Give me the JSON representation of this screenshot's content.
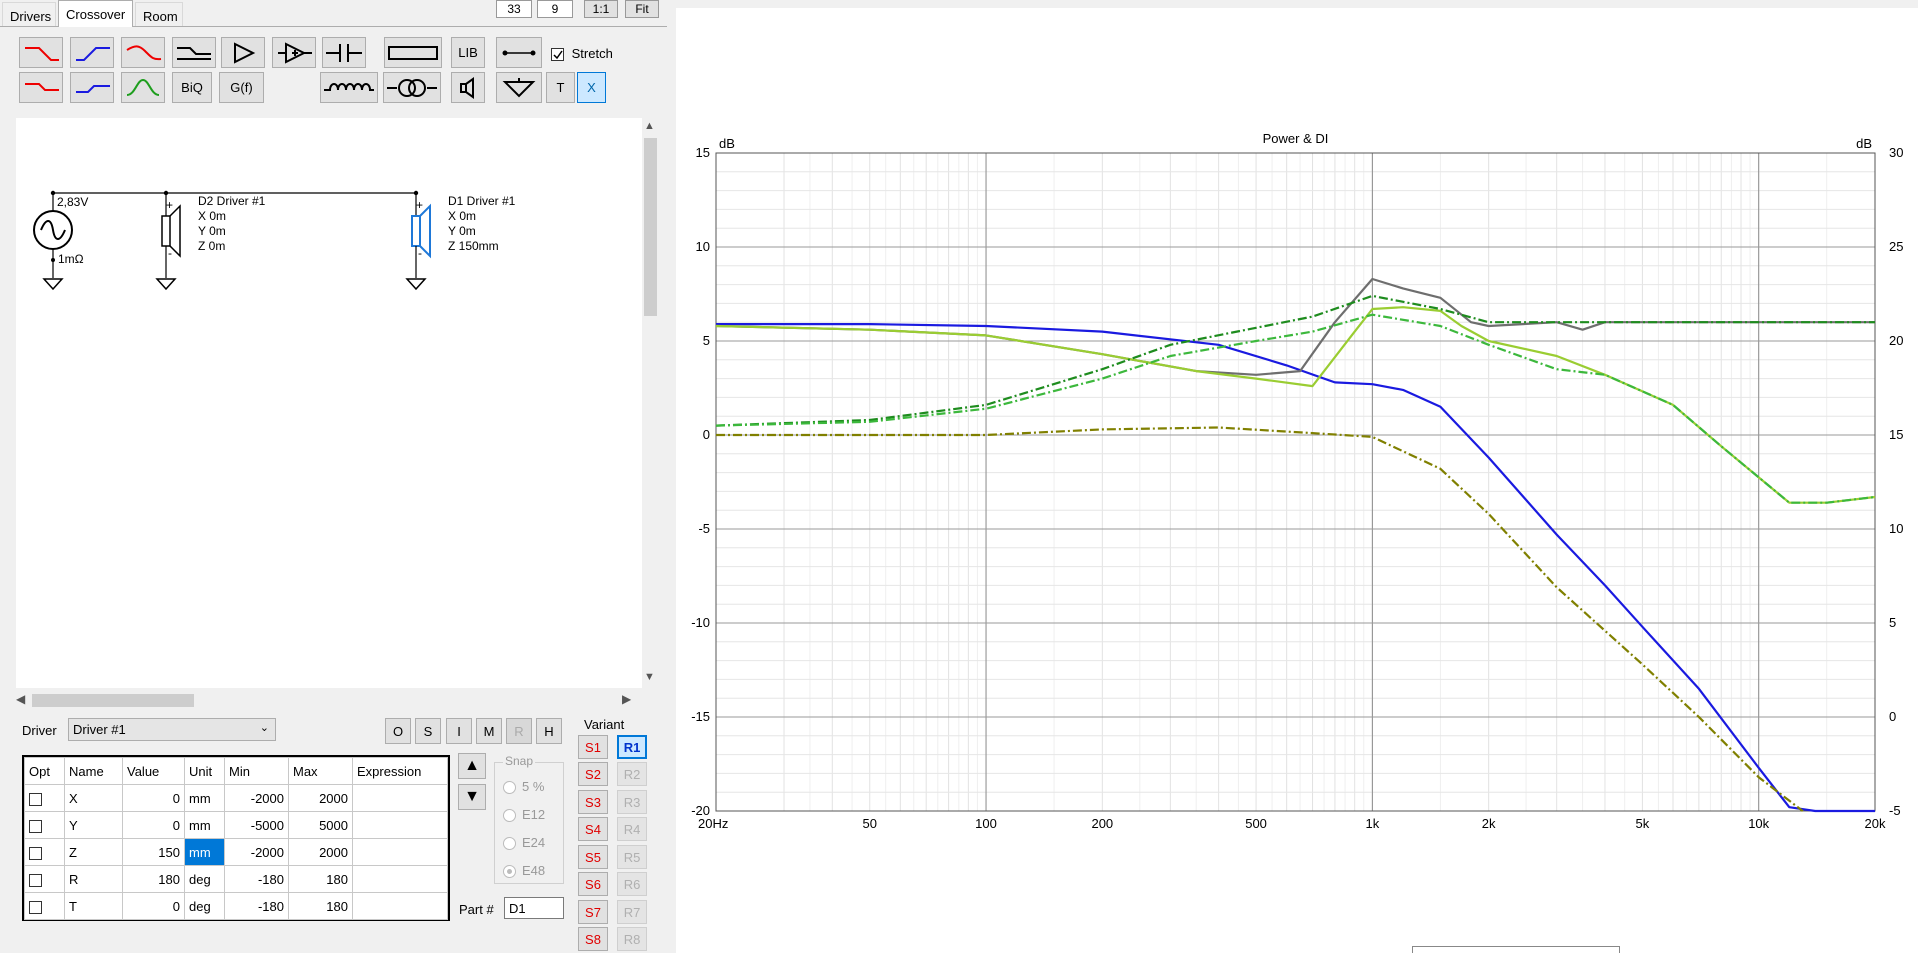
{
  "tabs": [
    "Drivers",
    "Crossover",
    "Room"
  ],
  "top_buttons": {
    "val1": "33",
    "val2": "9",
    "one_to_one": "1:1",
    "fit": "Fit"
  },
  "toolbar": {
    "lib": "LIB",
    "stretch": "Stretch",
    "biq": "BiQ",
    "gf": "G(f)",
    "t": "T",
    "x": "X"
  },
  "schematic": {
    "source_voltage": "2,83V",
    "source_impedance": "1mΩ",
    "driver2": {
      "name": "D2 Driver #1",
      "x": "X 0m",
      "y": "Y 0m",
      "z": "Z 0m"
    },
    "driver1": {
      "name": "D1 Driver #1",
      "x": "X 0m",
      "y": "Y 0m",
      "z": "Z 150mm"
    },
    "plus": "+",
    "minus": "-"
  },
  "driver_select": {
    "label": "Driver",
    "value": "Driver #1"
  },
  "mode_buttons": [
    "O",
    "S",
    "I",
    "M",
    "R",
    "H"
  ],
  "params": {
    "headers": [
      "Opt",
      "Name",
      "Value",
      "Unit",
      "Min",
      "Max",
      "Expression"
    ],
    "rows": [
      {
        "name": "X",
        "value": "0",
        "unit": "mm",
        "min": "-2000",
        "max": "2000"
      },
      {
        "name": "Y",
        "value": "0",
        "unit": "mm",
        "min": "-5000",
        "max": "5000"
      },
      {
        "name": "Z",
        "value": "150",
        "unit": "mm",
        "min": "-2000",
        "max": "2000"
      },
      {
        "name": "R",
        "value": "180",
        "unit": "deg",
        "min": "-180",
        "max": "180"
      },
      {
        "name": "T",
        "value": "0",
        "unit": "deg",
        "min": "-180",
        "max": "180"
      }
    ]
  },
  "snap": {
    "label": "Snap",
    "options": [
      "5 %",
      "E12",
      "E24",
      "E48"
    ]
  },
  "part": {
    "label": "Part #",
    "value": "D1"
  },
  "variant": {
    "label": "Variant",
    "s": [
      "S1",
      "S2",
      "S3",
      "S4",
      "S5",
      "S6",
      "S7",
      "S8"
    ],
    "r": [
      "R1",
      "R2",
      "R3",
      "R4",
      "R5",
      "R6",
      "R7",
      "R8"
    ]
  },
  "chart_data": {
    "type": "line",
    "title": "Power & DI",
    "xlabel": "",
    "ylabel_left": "dB",
    "ylabel_right": "dB",
    "x_scale": "log",
    "xlim": [
      20,
      20000
    ],
    "ylim_left": [
      -20,
      15
    ],
    "ylim_right": [
      -5,
      30
    ],
    "x_ticks": [
      20,
      50,
      100,
      200,
      500,
      1000,
      2000,
      5000,
      10000,
      20000
    ],
    "x_tick_labels": [
      "20Hz",
      "50",
      "100",
      "200",
      "500",
      "1k",
      "2k",
      "5k",
      "10k",
      "20k"
    ],
    "y_ticks_left": [
      15,
      10,
      5,
      0,
      -5,
      -10,
      -15,
      -20
    ],
    "y_ticks_right": [
      30,
      25,
      20,
      15,
      10,
      5,
      0,
      -5
    ],
    "grid": true,
    "series": [
      {
        "color": "#1a1ae0",
        "style": "solid",
        "axis": "left",
        "x": [
          20,
          50,
          100,
          200,
          400,
          600,
          800,
          1000,
          1200,
          1500,
          2000,
          3000,
          4000,
          5000,
          7000,
          10000,
          12000,
          14000,
          20000
        ],
        "y": [
          5.9,
          5.9,
          5.8,
          5.5,
          4.8,
          3.7,
          2.8,
          2.7,
          2.4,
          1.5,
          -1.2,
          -5.3,
          -8.0,
          -10.2,
          -13.5,
          -17.7,
          -19.8,
          -20.0,
          -20.0
        ]
      },
      {
        "color": "#6e6e6e",
        "style": "solid",
        "axis": "left",
        "x": [
          20,
          50,
          100,
          200,
          350,
          500,
          650,
          800,
          1000,
          1200,
          1500,
          1800,
          2000,
          3000,
          3500,
          4000,
          5000,
          10000,
          20000
        ],
        "y": [
          5.8,
          5.6,
          5.3,
          4.3,
          3.4,
          3.2,
          3.4,
          6.0,
          8.3,
          7.8,
          7.3,
          6.0,
          5.8,
          6.0,
          5.6,
          6.0,
          6.0,
          6.0,
          6.0
        ]
      },
      {
        "color": "#9acd32",
        "style": "solid",
        "axis": "left",
        "x": [
          20,
          50,
          100,
          200,
          350,
          500,
          700,
          900,
          1000,
          1200,
          1500,
          1700,
          2000,
          3000,
          4000,
          6000,
          8000,
          12000,
          15000,
          20000
        ],
        "y": [
          5.8,
          5.6,
          5.3,
          4.3,
          3.4,
          3.0,
          2.6,
          5.5,
          6.7,
          6.8,
          6.6,
          5.8,
          5.0,
          4.2,
          3.2,
          1.6,
          -0.6,
          -3.6,
          -3.6,
          -3.3
        ]
      },
      {
        "color": "#1e8c1e",
        "style": "dashdot",
        "axis": "left",
        "x": [
          20,
          50,
          100,
          200,
          300,
          500,
          700,
          1000,
          1500,
          2000,
          5000,
          10000,
          20000
        ],
        "y": [
          0.5,
          0.8,
          1.6,
          3.5,
          4.8,
          5.7,
          6.3,
          7.4,
          6.7,
          6.0,
          6.0,
          6.0,
          6.0
        ]
      },
      {
        "color": "#3cb83c",
        "style": "dashdot",
        "axis": "left",
        "x": [
          20,
          50,
          100,
          200,
          300,
          500,
          700,
          1000,
          1500,
          2000,
          3000,
          4000,
          6000,
          8000,
          12000,
          15000,
          20000
        ],
        "y": [
          0.5,
          0.7,
          1.4,
          3.0,
          4.2,
          5.0,
          5.5,
          6.4,
          5.8,
          4.8,
          3.5,
          3.2,
          1.6,
          -0.6,
          -3.6,
          -3.6,
          -3.3
        ]
      },
      {
        "color": "#808000",
        "style": "dashdot",
        "axis": "left",
        "x": [
          20,
          100,
          200,
          400,
          700,
          1000,
          1500,
          2000,
          3000,
          5000,
          7000,
          10000,
          13000
        ],
        "y": [
          0.0,
          0.0,
          0.3,
          0.4,
          0.1,
          -0.1,
          -1.8,
          -4.2,
          -8.1,
          -12.2,
          -15.0,
          -18.2,
          -20.0
        ]
      }
    ]
  }
}
